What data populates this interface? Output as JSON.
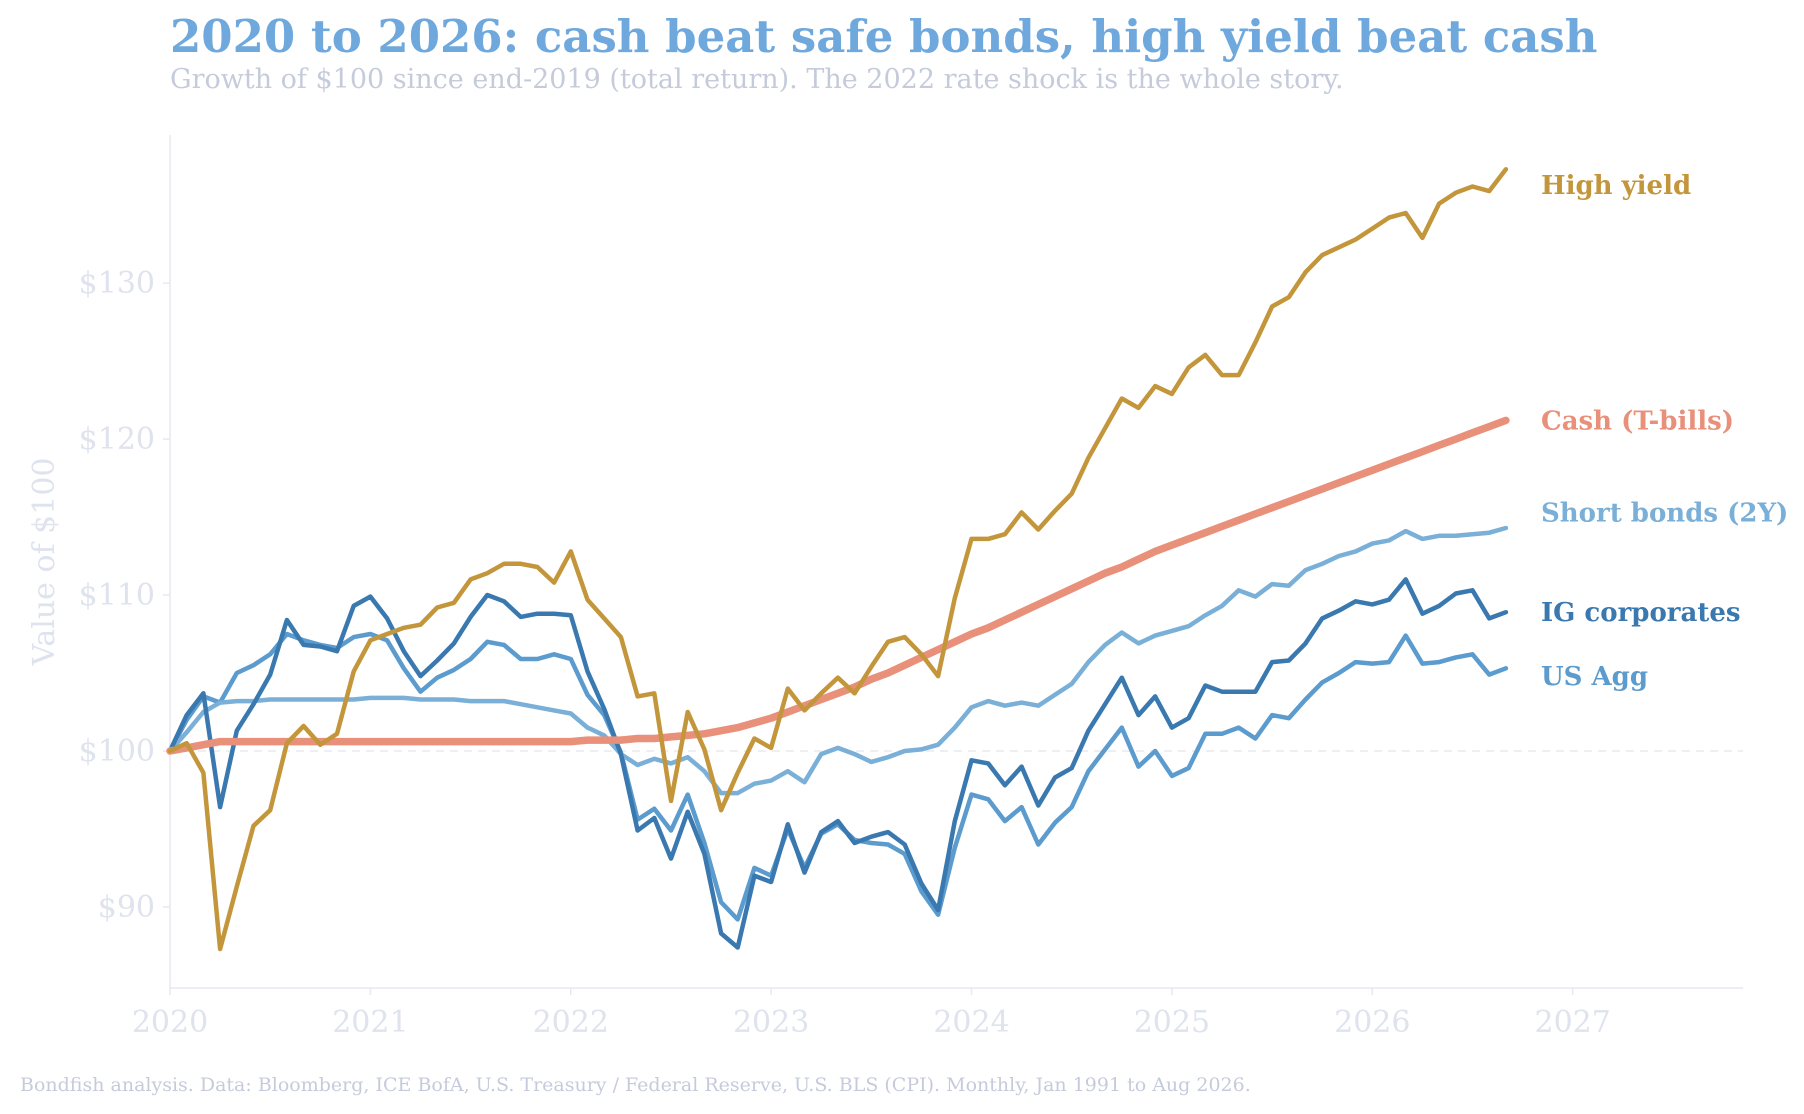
{
  "header": {
    "title": "2020 to 2026: cash beat safe bonds, high yield beat cash",
    "subtitle": "Growth of $100 since end-2019 (total return). The 2022 rate shock is the whole story."
  },
  "footer": "Bondfish analysis. Data: Bloomberg, ICE BofA, U.S. Treasury / Federal Reserve, U.S. BLS (CPI). Monthly, Jan 1991 to Aug 2026.",
  "colors": {
    "high_yield": "#c4963c",
    "cash": "#e8907a",
    "short_bonds": "#7aafd8",
    "ig_corporates": "#3a78b0",
    "us_agg": "#5b9bcd"
  },
  "chart_data": {
    "type": "line",
    "title": "2020 to 2026: cash beat safe bonds, high yield beat cash",
    "subtitle": "Growth of $100 since end-2019 (total return). The 2022 rate shock is the whole story.",
    "xlabel": "",
    "ylabel": "Value of $100",
    "xlim": [
      2020,
      2027.85
    ],
    "ylim": [
      84.8,
      139.5
    ],
    "x_ticks": [
      2020,
      2021,
      2022,
      2023,
      2024,
      2025,
      2026,
      2027
    ],
    "x_tick_labels": [
      "2020",
      "2021",
      "2022",
      "2023",
      "2024",
      "2025",
      "2026",
      "2027"
    ],
    "y_ticks": [
      90,
      100,
      110,
      120,
      130
    ],
    "y_tick_labels": [
      "$90",
      "$100",
      "$110",
      "$120",
      "$130"
    ],
    "reference_line": {
      "y": 100,
      "style": "dashed"
    },
    "grid": false,
    "legend": "direct labels at right end of each line",
    "x_start": 2020.0,
    "x_step_years": 0.0833333,
    "series": [
      {
        "name": "High yield",
        "color": "#c4963c",
        "values": [
          100,
          100.5,
          98.6,
          87.3,
          91.3,
          95.2,
          96.2,
          100.5,
          101.6,
          100.4,
          101.1,
          105.1,
          107.1,
          107.5,
          107.9,
          108.1,
          109.2,
          109.5,
          111.0,
          111.4,
          112.0,
          112.0,
          111.8,
          110.8,
          112.8,
          109.7,
          108.5,
          107.3,
          103.5,
          103.7,
          96.8,
          102.5,
          100.1,
          96.2,
          98.6,
          100.8,
          100.2,
          104.0,
          102.6,
          103.7,
          104.7,
          103.7,
          105.4,
          107.0,
          107.3,
          106.2,
          104.8,
          109.8,
          113.6,
          113.6,
          113.9,
          115.3,
          114.2,
          115.4,
          116.5,
          118.8,
          120.7,
          122.6,
          122.0,
          123.4,
          122.9,
          124.6,
          125.4,
          124.1,
          124.1,
          126.2,
          128.5,
          129.1,
          130.7,
          131.8,
          132.3,
          132.8,
          133.5,
          134.2,
          134.5,
          132.9,
          135.1,
          135.8,
          136.2,
          135.9,
          137.3
        ]
      },
      {
        "name": "Cash (T-bills)",
        "color": "#e8907a",
        "values": [
          100,
          100.2,
          100.4,
          100.6,
          100.6,
          100.6,
          100.6,
          100.6,
          100.6,
          100.6,
          100.6,
          100.6,
          100.6,
          100.6,
          100.6,
          100.6,
          100.6,
          100.6,
          100.6,
          100.6,
          100.6,
          100.6,
          100.6,
          100.6,
          100.6,
          100.7,
          100.7,
          100.7,
          100.8,
          100.8,
          100.9,
          101.0,
          101.1,
          101.3,
          101.5,
          101.8,
          102.1,
          102.5,
          102.9,
          103.3,
          103.7,
          104.1,
          104.6,
          105.0,
          105.5,
          106.0,
          106.5,
          107.0,
          107.5,
          107.9,
          108.4,
          108.9,
          109.4,
          109.9,
          110.4,
          110.9,
          111.4,
          111.8,
          112.3,
          112.8,
          113.2,
          113.6,
          114.0,
          114.4,
          114.8,
          115.2,
          115.6,
          116.0,
          116.4,
          116.8,
          117.2,
          117.6,
          118.0,
          118.4,
          118.8,
          119.2,
          119.6,
          120.0,
          120.4,
          120.8,
          121.2
        ]
      },
      {
        "name": "Short bonds (2Y)",
        "color": "#7aafd8",
        "values": [
          100,
          101.2,
          102.5,
          103.1,
          103.2,
          103.2,
          103.3,
          103.3,
          103.3,
          103.3,
          103.3,
          103.3,
          103.4,
          103.4,
          103.4,
          103.3,
          103.3,
          103.3,
          103.2,
          103.2,
          103.2,
          103.0,
          102.8,
          102.6,
          102.4,
          101.5,
          101.0,
          99.8,
          99.1,
          99.5,
          99.2,
          99.6,
          98.7,
          97.3,
          97.3,
          97.9,
          98.1,
          98.7,
          98.0,
          99.8,
          100.2,
          99.8,
          99.3,
          99.6,
          100.0,
          100.1,
          100.4,
          101.5,
          102.8,
          103.2,
          102.9,
          103.1,
          102.9,
          103.6,
          104.3,
          105.7,
          106.8,
          107.6,
          106.9,
          107.4,
          107.7,
          108.0,
          108.7,
          109.3,
          110.3,
          109.9,
          110.7,
          110.6,
          111.6,
          112.0,
          112.5,
          112.8,
          113.3,
          113.5,
          114.1,
          113.6,
          113.8,
          113.8,
          113.9,
          114.0,
          114.3
        ]
      },
      {
        "name": "IG corporates",
        "color": "#3a78b0",
        "values": [
          100,
          102.3,
          103.7,
          96.4,
          101.3,
          103.0,
          104.9,
          108.4,
          106.8,
          106.7,
          106.4,
          109.3,
          109.9,
          108.5,
          106.4,
          104.8,
          105.8,
          106.9,
          108.6,
          110.0,
          109.6,
          108.6,
          108.8,
          108.8,
          108.7,
          105.1,
          102.7,
          99.8,
          94.9,
          95.7,
          93.1,
          96.1,
          93.4,
          88.3,
          87.4,
          92.0,
          91.6,
          95.3,
          92.2,
          94.8,
          95.5,
          94.1,
          94.5,
          94.8,
          94.0,
          91.5,
          89.8,
          95.5,
          99.4,
          99.2,
          97.8,
          99.0,
          96.5,
          98.3,
          98.9,
          101.3,
          103.0,
          104.7,
          102.3,
          103.5,
          101.5,
          102.1,
          104.2,
          103.8,
          103.8,
          103.8,
          105.7,
          105.8,
          106.9,
          108.5,
          109.0,
          109.6,
          109.4,
          109.7,
          111.0,
          108.8,
          109.3,
          110.1,
          110.3,
          108.5,
          108.9
        ]
      },
      {
        "name": "US Agg",
        "color": "#5b9bcd",
        "values": [
          100,
          102.0,
          103.5,
          103.1,
          105.0,
          105.5,
          106.2,
          107.5,
          107.1,
          106.8,
          106.6,
          107.3,
          107.5,
          107.1,
          105.3,
          103.8,
          104.7,
          105.2,
          105.9,
          107.0,
          106.8,
          105.9,
          105.9,
          106.2,
          105.9,
          103.6,
          102.3,
          99.9,
          95.6,
          96.3,
          94.9,
          97.2,
          94.1,
          90.3,
          89.2,
          92.5,
          92.0,
          95.0,
          92.5,
          94.7,
          95.3,
          94.3,
          94.1,
          94.0,
          93.4,
          91.0,
          89.5,
          93.8,
          97.2,
          96.9,
          95.5,
          96.4,
          94.0,
          95.4,
          96.4,
          98.7,
          100.1,
          101.5,
          99.0,
          100.0,
          98.4,
          98.9,
          101.1,
          101.1,
          101.5,
          100.8,
          102.3,
          102.1,
          103.3,
          104.4,
          105.0,
          105.7,
          105.6,
          105.7,
          107.4,
          105.6,
          105.7,
          106.0,
          106.2,
          104.9,
          105.3
        ]
      }
    ]
  }
}
